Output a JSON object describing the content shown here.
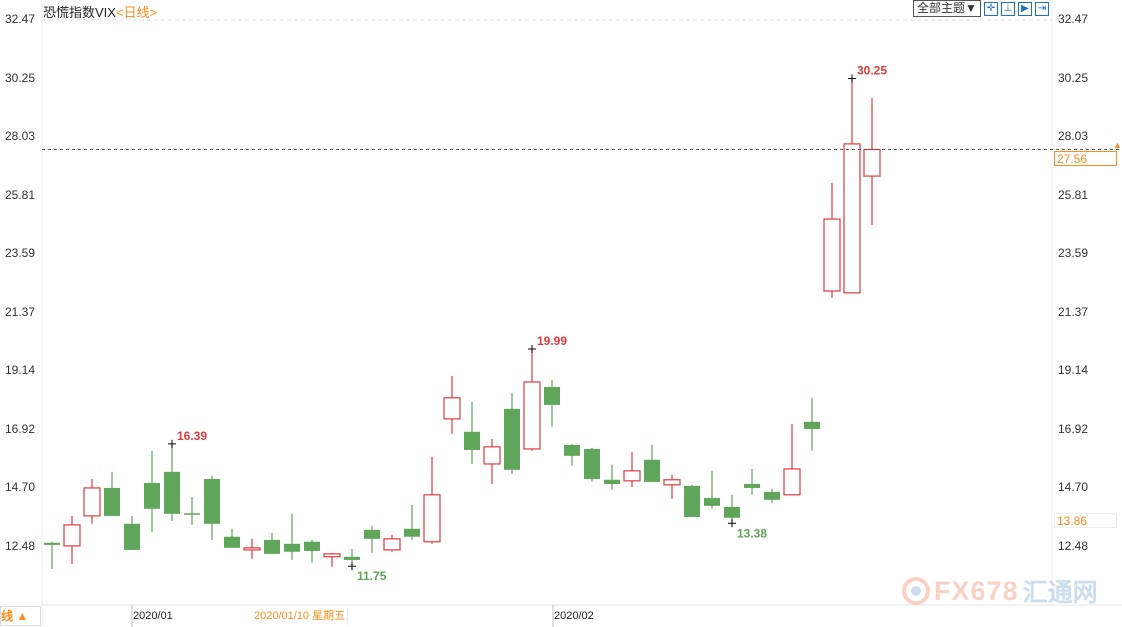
{
  "header": {
    "title": "恐慌指数VIX",
    "period": "<日线>"
  },
  "toolbar": {
    "theme_label": "全部主题▼",
    "tools": [
      "crosshair-icon",
      "range-icon",
      "play-icon",
      "end-icon"
    ]
  },
  "colors": {
    "up": "#e0393e",
    "down": "#5fa55a",
    "accent": "#ff8c1a",
    "last_line": "#555555"
  },
  "axis": {
    "ticks": [
      "32.47",
      "30.25",
      "28.03",
      "25.81",
      "23.59",
      "21.37",
      "19.14",
      "16.92",
      "14.70",
      "12.48"
    ],
    "last_price": "27.56",
    "cursor_price": "13.86"
  },
  "xaxis": {
    "labels": [
      "2020/01",
      "2020/02"
    ],
    "selected_date": "2020/01/10 星期五",
    "period_toggle": "线 ▲"
  },
  "watermark": {
    "brand": "FX678",
    "cn": "汇通网"
  },
  "annotations": [
    {
      "text": "16.39",
      "index": 6,
      "type": "high"
    },
    {
      "text": "11.75",
      "index": 15,
      "type": "low"
    },
    {
      "text": "19.99",
      "index": 24,
      "type": "high"
    },
    {
      "text": "13.38",
      "index": 34,
      "type": "low"
    },
    {
      "text": "30.25",
      "index": 40,
      "type": "high"
    }
  ],
  "chart_data": {
    "type": "candlestick",
    "title": "恐慌指数VIX",
    "ylim": [
      12.48,
      32.47
    ],
    "ohlc": [
      [
        12.64,
        12.68,
        11.65,
        12.56
      ],
      [
        12.52,
        13.66,
        11.84,
        13.32
      ],
      [
        13.66,
        15.06,
        13.36,
        14.72
      ],
      [
        14.72,
        15.33,
        13.66,
        13.66
      ],
      [
        13.36,
        13.66,
        12.37,
        12.37
      ],
      [
        14.91,
        16.13,
        13.05,
        13.93
      ],
      [
        15.33,
        16.39,
        13.47,
        13.74
      ],
      [
        13.76,
        14.38,
        13.32,
        13.74
      ],
      [
        15.06,
        15.18,
        12.75,
        13.36
      ],
      [
        12.87,
        13.17,
        12.45,
        12.45
      ],
      [
        12.37,
        12.79,
        12.03,
        12.45
      ],
      [
        12.75,
        13.02,
        12.22,
        12.22
      ],
      [
        12.6,
        13.74,
        11.99,
        12.3
      ],
      [
        12.68,
        12.75,
        11.88,
        12.33
      ],
      [
        12.11,
        12.26,
        11.73,
        12.22
      ],
      [
        12.11,
        12.41,
        11.75,
        11.99
      ],
      [
        13.13,
        13.28,
        12.26,
        12.79
      ],
      [
        12.37,
        12.94,
        12.3,
        12.79
      ],
      [
        13.17,
        14.08,
        12.75,
        12.87
      ],
      [
        12.68,
        15.9,
        12.6,
        14.46
      ],
      [
        17.34,
        18.97,
        16.77,
        18.14
      ],
      [
        16.85,
        17.98,
        15.63,
        16.16
      ],
      [
        15.63,
        16.58,
        14.87,
        16.28
      ],
      [
        17.72,
        18.33,
        15.25,
        15.41
      ],
      [
        16.2,
        19.99,
        16.13,
        18.74
      ],
      [
        18.55,
        18.82,
        17.04,
        17.87
      ],
      [
        16.35,
        16.38,
        15.56,
        15.94
      ],
      [
        16.2,
        16.24,
        14.95,
        15.06
      ],
      [
        15.03,
        15.6,
        14.65,
        14.87
      ],
      [
        14.99,
        16.09,
        14.76,
        15.37
      ],
      [
        15.79,
        16.35,
        14.95,
        14.95
      ],
      [
        14.84,
        15.22,
        14.31,
        15.03
      ],
      [
        14.8,
        14.84,
        13.62,
        13.62
      ],
      [
        14.34,
        15.37,
        13.93,
        14.04
      ],
      [
        14.0,
        14.46,
        13.38,
        13.59
      ],
      [
        14.87,
        15.44,
        14.46,
        14.72
      ],
      [
        14.57,
        14.69,
        14.15,
        14.27
      ],
      [
        14.46,
        17.15,
        14.46,
        15.44
      ],
      [
        17.23,
        18.14,
        16.13,
        16.96
      ],
      [
        22.19,
        26.29,
        21.93,
        24.92
      ],
      [
        22.12,
        30.25,
        22.12,
        27.77
      ],
      [
        26.55,
        29.51,
        24.7,
        27.56
      ]
    ]
  }
}
